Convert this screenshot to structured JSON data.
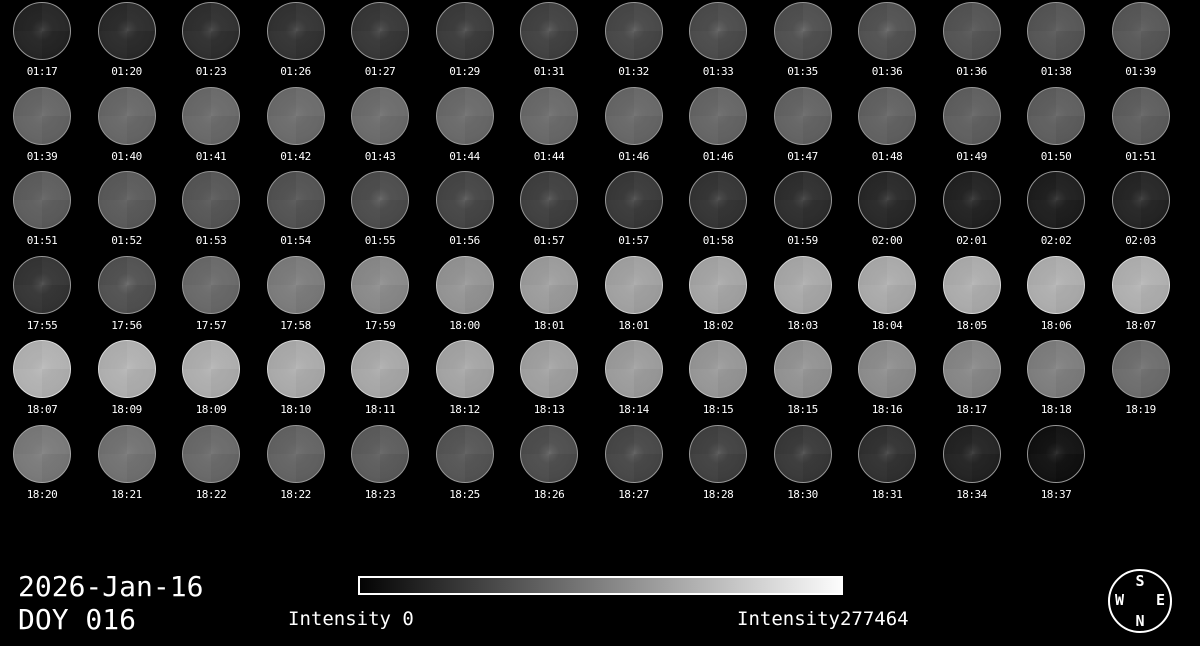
{
  "chart_data": {
    "type": "heatmap",
    "title": "2026-Jan-16",
    "subtitle": "DOY 016",
    "description": "Montage of 83 circular sky/solar intensity images, one per frame time; grayscale encodes intensity",
    "legend_position": "bottom",
    "colorbar": {
      "min": 0,
      "max": 277464,
      "min_label": "Intensity 0",
      "max_label": "Intensity277464",
      "start_color": "#040404",
      "end_color": "#fcfcfc"
    },
    "rows": [
      [
        {
          "time": "01:17",
          "gray": 40
        },
        {
          "time": "01:20",
          "gray": 46
        },
        {
          "time": "01:23",
          "gray": 50
        },
        {
          "time": "01:26",
          "gray": 54
        },
        {
          "time": "01:27",
          "gray": 58
        },
        {
          "time": "01:29",
          "gray": 62
        },
        {
          "time": "01:31",
          "gray": 68
        },
        {
          "time": "01:32",
          "gray": 74
        },
        {
          "time": "01:33",
          "gray": 78
        },
        {
          "time": "01:35",
          "gray": 82
        },
        {
          "time": "01:36",
          "gray": 84
        },
        {
          "time": "01:36",
          "gray": 86
        },
        {
          "time": "01:38",
          "gray": 88
        },
        {
          "time": "01:39",
          "gray": 90
        }
      ],
      [
        {
          "time": "01:39",
          "gray": 104
        },
        {
          "time": "01:40",
          "gray": 106
        },
        {
          "time": "01:41",
          "gray": 108
        },
        {
          "time": "01:42",
          "gray": 110
        },
        {
          "time": "01:43",
          "gray": 110
        },
        {
          "time": "01:44",
          "gray": 108
        },
        {
          "time": "01:44",
          "gray": 108
        },
        {
          "time": "01:46",
          "gray": 106
        },
        {
          "time": "01:46",
          "gray": 104
        },
        {
          "time": "01:47",
          "gray": 102
        },
        {
          "time": "01:48",
          "gray": 100
        },
        {
          "time": "01:49",
          "gray": 98
        },
        {
          "time": "01:50",
          "gray": 97
        },
        {
          "time": "01:51",
          "gray": 96
        }
      ],
      [
        {
          "time": "01:51",
          "gray": 96
        },
        {
          "time": "01:52",
          "gray": 93
        },
        {
          "time": "01:53",
          "gray": 89
        },
        {
          "time": "01:54",
          "gray": 85
        },
        {
          "time": "01:55",
          "gray": 79
        },
        {
          "time": "01:56",
          "gray": 72
        },
        {
          "time": "01:57",
          "gray": 66
        },
        {
          "time": "01:57",
          "gray": 60
        },
        {
          "time": "01:58",
          "gray": 55
        },
        {
          "time": "01:59",
          "gray": 49
        },
        {
          "time": "02:00",
          "gray": 43
        },
        {
          "time": "02:01",
          "gray": 37
        },
        {
          "time": "02:02",
          "gray": 33
        },
        {
          "time": "02:03",
          "gray": 40
        }
      ],
      [
        {
          "time": "17:55",
          "gray": 56
        },
        {
          "time": "17:56",
          "gray": 84
        },
        {
          "time": "17:57",
          "gray": 108
        },
        {
          "time": "17:58",
          "gray": 126
        },
        {
          "time": "17:59",
          "gray": 140
        },
        {
          "time": "18:00",
          "gray": 150
        },
        {
          "time": "18:01",
          "gray": 158
        },
        {
          "time": "18:01",
          "gray": 164
        },
        {
          "time": "18:02",
          "gray": 167
        },
        {
          "time": "18:03",
          "gray": 170
        },
        {
          "time": "18:04",
          "gray": 172
        },
        {
          "time": "18:05",
          "gray": 174
        },
        {
          "time": "18:06",
          "gray": 176
        },
        {
          "time": "18:07",
          "gray": 178
        }
      ],
      [
        {
          "time": "18:07",
          "gray": 180
        },
        {
          "time": "18:09",
          "gray": 178
        },
        {
          "time": "18:09",
          "gray": 176
        },
        {
          "time": "18:10",
          "gray": 173
        },
        {
          "time": "18:11",
          "gray": 170
        },
        {
          "time": "18:12",
          "gray": 166
        },
        {
          "time": "18:13",
          "gray": 162
        },
        {
          "time": "18:14",
          "gray": 158
        },
        {
          "time": "18:15",
          "gray": 153
        },
        {
          "time": "18:15",
          "gray": 148
        },
        {
          "time": "18:16",
          "gray": 142
        },
        {
          "time": "18:17",
          "gray": 136
        },
        {
          "time": "18:18",
          "gray": 128
        },
        {
          "time": "18:19",
          "gray": 112
        }
      ],
      [
        {
          "time": "18:20",
          "gray": 124
        },
        {
          "time": "18:21",
          "gray": 116
        },
        {
          "time": "18:22",
          "gray": 108
        },
        {
          "time": "18:22",
          "gray": 102
        },
        {
          "time": "18:23",
          "gray": 95
        },
        {
          "time": "18:25",
          "gray": 88
        },
        {
          "time": "18:26",
          "gray": 80
        },
        {
          "time": "18:27",
          "gray": 74
        },
        {
          "time": "18:28",
          "gray": 68
        },
        {
          "time": "18:30",
          "gray": 60
        },
        {
          "time": "18:31",
          "gray": 52
        },
        {
          "time": "18:34",
          "gray": 38
        },
        {
          "time": "18:37",
          "gray": 20
        }
      ]
    ]
  },
  "footer": {
    "date": "2026-Jan-16",
    "doy": "DOY 016",
    "intensity_min_label": "Intensity 0",
    "intensity_max_label": "Intensity277464"
  },
  "compass": {
    "top": "S",
    "left": "W",
    "right": "E",
    "bottom": "N"
  }
}
